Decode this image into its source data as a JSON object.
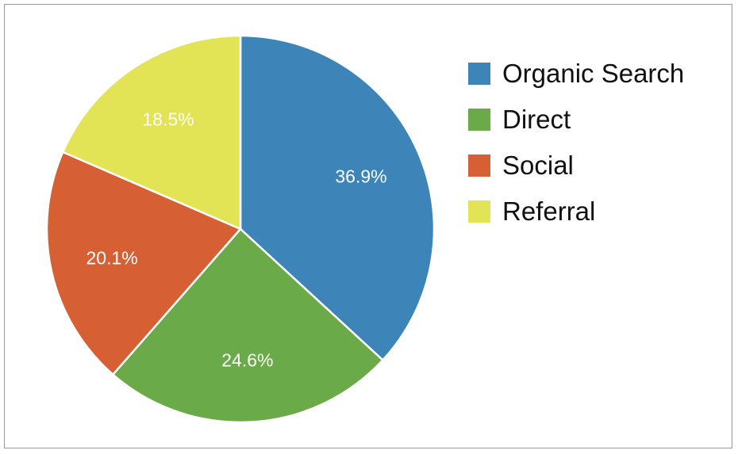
{
  "chart_data": {
    "type": "pie",
    "title": "",
    "start_angle": "top",
    "direction": "clockwise",
    "legend_position": "right",
    "slices": [
      {
        "label": "Organic Search",
        "value": 36.9,
        "value_label": "36.9%",
        "color": "#3d85b8"
      },
      {
        "label": "Direct",
        "value": 24.6,
        "value_label": "24.6%",
        "color": "#6aaa48"
      },
      {
        "label": "Social",
        "value": 20.1,
        "value_label": "20.1%",
        "color": "#d65f33"
      },
      {
        "label": "Referral",
        "value": 18.5,
        "value_label": "18.5%",
        "color": "#e3e356"
      }
    ]
  }
}
